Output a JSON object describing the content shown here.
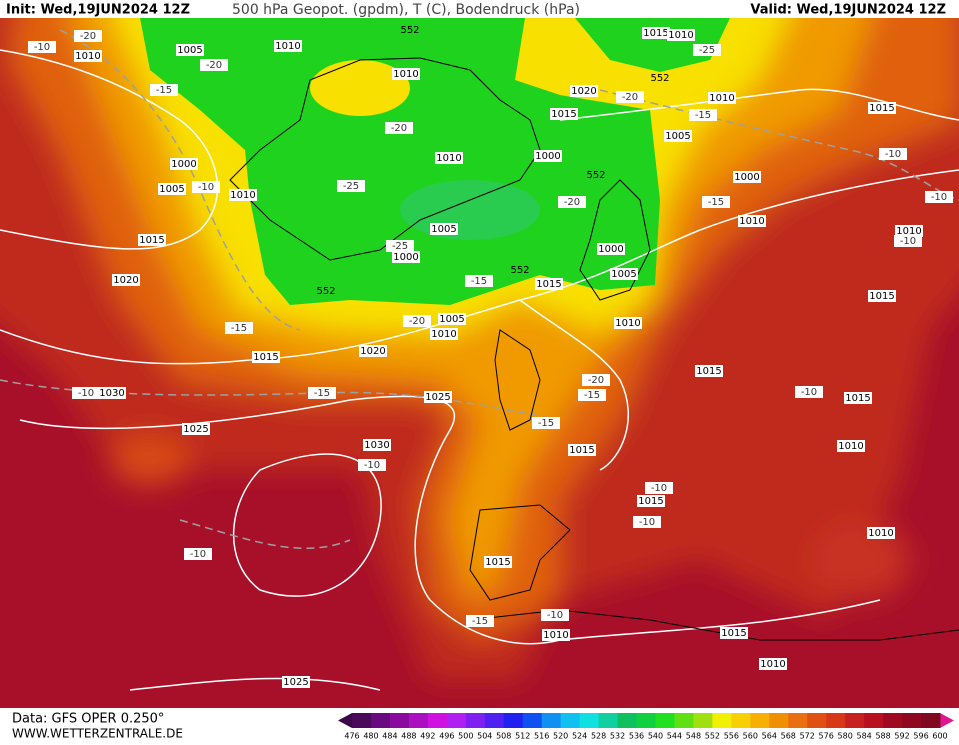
{
  "header": {
    "init": "Init: Wed,19JUN2024 12Z",
    "title": "500 hPa Geopot. (gpdm), T (C), Bodendruck (hPa)",
    "valid": "Valid: Wed,19JUN2024 12Z"
  },
  "footer": {
    "data": "Data: GFS OPER 0.250°",
    "site": "WWW.WETTERZENTRALE.DE"
  },
  "map": {
    "pressure_labels": [
      "1005",
      "1010",
      "1010",
      "1010",
      "1015",
      "1010",
      "1020",
      "1015",
      "1010",
      "1015",
      "1005",
      "1010",
      "1000",
      "1000",
      "1005",
      "1010",
      "1000",
      "1010",
      "1005",
      "1000",
      "1000",
      "1005",
      "1015",
      "1020",
      "1015",
      "1005",
      "1010",
      "1010",
      "1015",
      "1010",
      "1020",
      "1015",
      "1015",
      "1030",
      "1025",
      "1015",
      "1025",
      "1015",
      "1010",
      "1030",
      "1015",
      "1010",
      "1015",
      "1010",
      "1015",
      "1010",
      "1025"
    ],
    "temperature_labels": [
      "-10",
      "-20",
      "-20",
      "-15",
      "-25",
      "-20",
      "-15",
      "-20",
      "-25",
      "-10",
      "-20",
      "-15",
      "-25",
      "-15",
      "-10",
      "-10",
      "-10",
      "-15",
      "-20",
      "-10",
      "-15",
      "-20",
      "-15",
      "-15",
      "-10",
      "-10",
      "-10",
      "-10",
      "-10",
      "-15",
      "-10"
    ],
    "height_labels": [
      "552",
      "552",
      "552",
      "552",
      "552"
    ]
  },
  "colorbar": {
    "labels": [
      "476",
      "480",
      "484",
      "488",
      "492",
      "496",
      "500",
      "504",
      "508",
      "512",
      "516",
      "520",
      "524",
      "528",
      "532",
      "536",
      "540",
      "544",
      "548",
      "552",
      "556",
      "560",
      "564",
      "568",
      "572",
      "576",
      "580",
      "584",
      "588",
      "592",
      "596",
      "600"
    ],
    "colors": [
      "#4a0a5a",
      "#6a0a80",
      "#8a0aa0",
      "#aa10c0",
      "#d010e0",
      "#b020f0",
      "#8020f0",
      "#5020f0",
      "#2020f0",
      "#1050f0",
      "#1090f0",
      "#10c0f0",
      "#10e0e0",
      "#10d0a0",
      "#10c060",
      "#10d040",
      "#20e020",
      "#60e010",
      "#a0e010",
      "#f0f000",
      "#f8d000",
      "#f8b000",
      "#f09000",
      "#e87010",
      "#e05010",
      "#d83818",
      "#c82020",
      "#b81020",
      "#a00a20",
      "#900820",
      "#800820"
    ]
  }
}
